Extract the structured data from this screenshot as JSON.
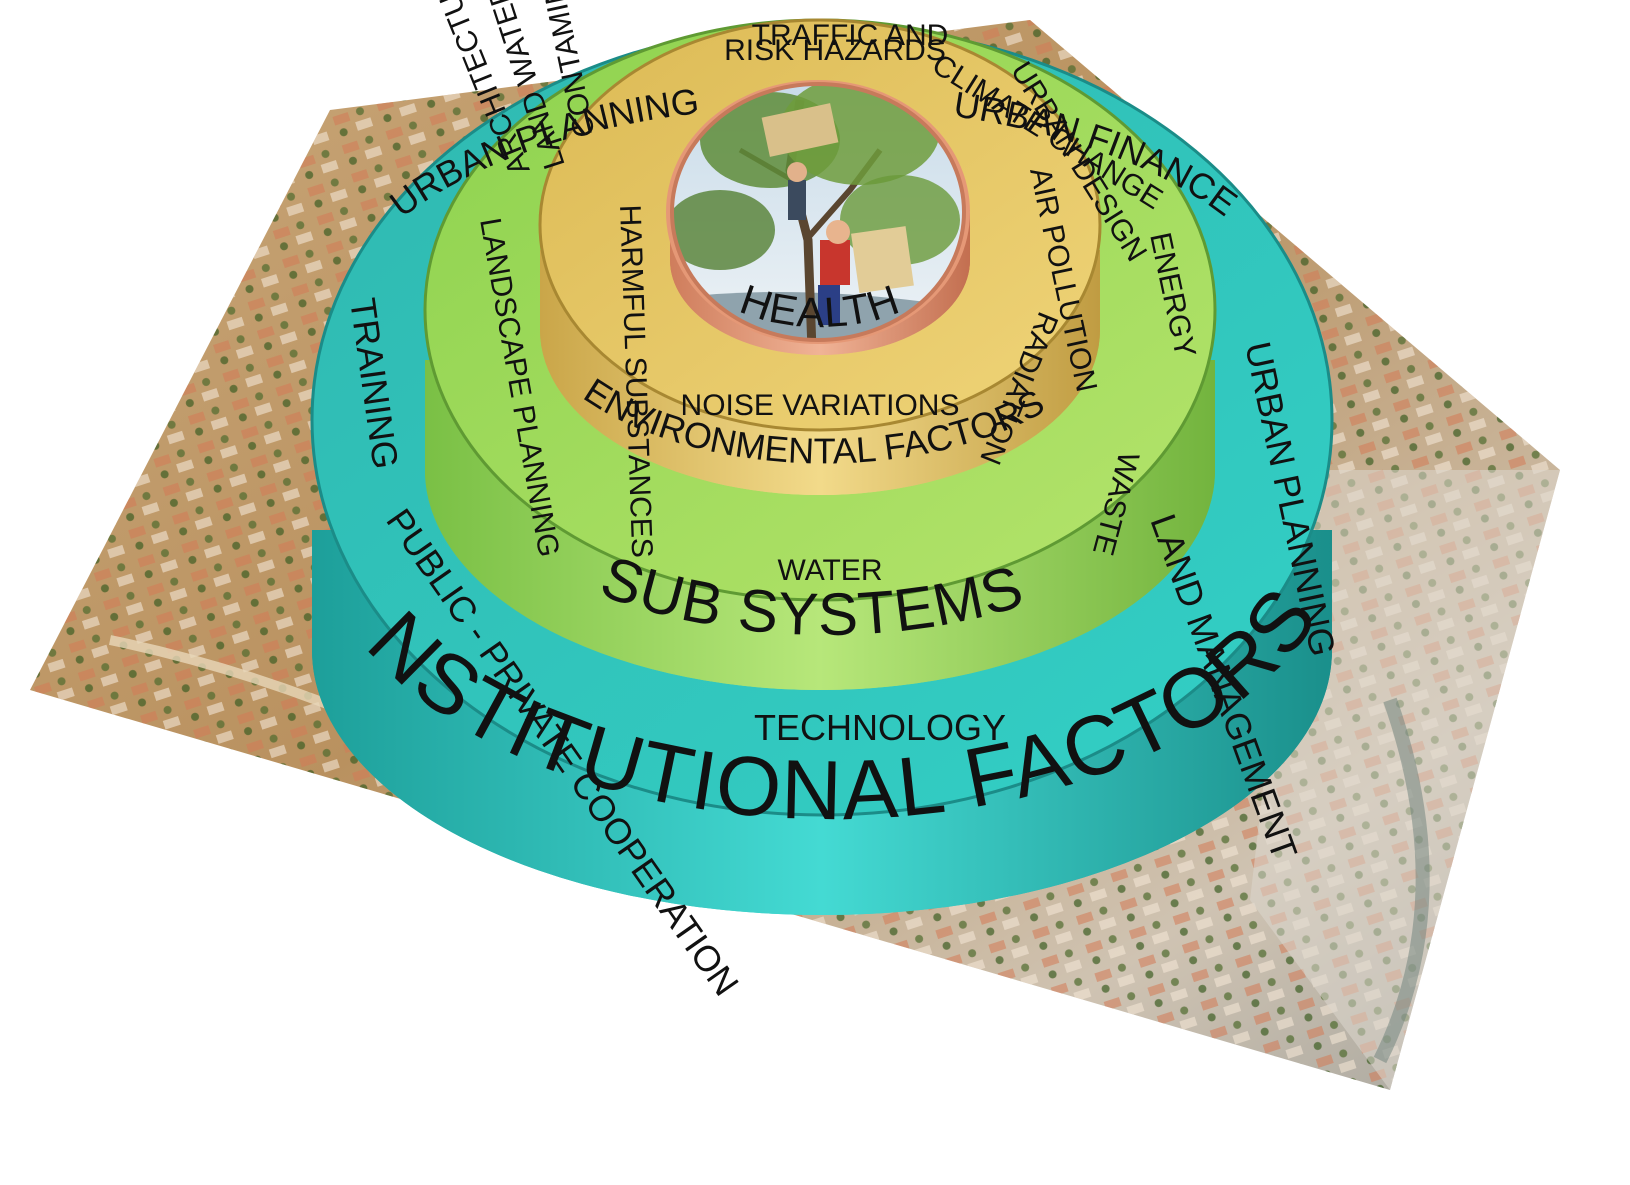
{
  "rings": {
    "institutional": {
      "title": "INSTITUTIONAL FACTORS",
      "color": "#2cc5c0",
      "items": {
        "urban_planning_top": "URBAN PLANNING",
        "urban_finance": "URBAN FINANCE",
        "urban_planning_right": "URBAN PLANNING",
        "land_management": "LAND MANAGEMENT",
        "technology": "TECHNOLOGY",
        "public_private": "PUBLIC - PRIVATE COOPERATION",
        "training": "TRAINING"
      }
    },
    "subsystems": {
      "title": "SUB SYSTEMS",
      "color": "#a2dc5a",
      "items": {
        "traffic": "TRAFFIC AND",
        "urban_design": "URBAN DESIGN",
        "energy": "ENERGY",
        "waste": "WASTE",
        "water": "WATER",
        "landscape": "LANDSCAPE PLANNING",
        "architecture": "ARCHITECTURE AND"
      }
    },
    "environmental": {
      "title": "ENVIRONMENTAL FACTORS",
      "color": "#e6c760",
      "items": {
        "risk": "RISK HAZARDS",
        "climate": "CLIMATE CHANGE",
        "air": "AIR POLLUTION",
        "radiation": "RADIATION",
        "noise": "NOISE VARIATIONS",
        "harmful": "HARMFUL SUBSTANCES",
        "contaminated": "CONTAMINATED",
        "land_water": "LAND WATER"
      }
    },
    "health": {
      "title": "HEALTH",
      "color": "#e59876"
    }
  },
  "icons": {
    "base": "city-model-map",
    "center": "tree-with-children-photo"
  }
}
